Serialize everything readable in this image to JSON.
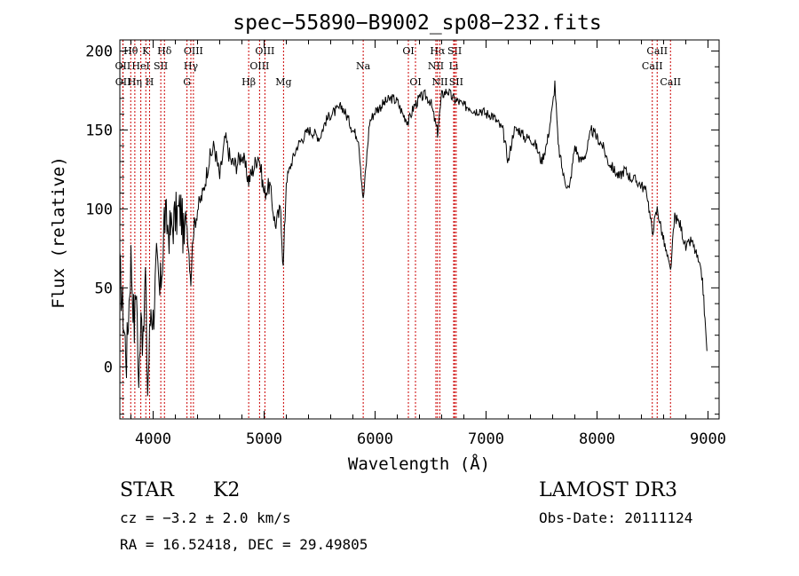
{
  "chart_data": {
    "type": "line",
    "title": "spec−55890−B9002_sp08−232.fits",
    "xlabel": "Wavelength (Å)",
    "ylabel": "Flux (relative)",
    "xlim": [
      3700,
      9100
    ],
    "ylim": [
      -33,
      207
    ],
    "xticks": [
      4000,
      5000,
      6000,
      7000,
      8000,
      9000
    ],
    "yticks": [
      0,
      50,
      100,
      150,
      200
    ],
    "grid": false,
    "series": [
      {
        "name": "flux",
        "x": [
          3700,
          3760,
          3800,
          3830,
          3850,
          3870,
          3890,
          3910,
          3930,
          3950,
          3980,
          4000,
          4030,
          4060,
          4090,
          4100,
          4150,
          4200,
          4250,
          4280,
          4300,
          4340,
          4360,
          4400,
          4450,
          4500,
          4550,
          4600,
          4650,
          4700,
          4750,
          4800,
          4861,
          4900,
          4950,
          5000,
          5050,
          5100,
          5150,
          5172,
          5200,
          5250,
          5300,
          5350,
          5400,
          5450,
          5500,
          5550,
          5600,
          5650,
          5700,
          5750,
          5800,
          5850,
          5893,
          5950,
          6000,
          6050,
          6100,
          6150,
          6200,
          6250,
          6300,
          6350,
          6400,
          6450,
          6500,
          6563,
          6600,
          6650,
          6700,
          6750,
          6800,
          6850,
          6900,
          6950,
          7000,
          7050,
          7100,
          7150,
          7200,
          7250,
          7300,
          7350,
          7400,
          7450,
          7500,
          7550,
          7600,
          7620,
          7650,
          7700,
          7750,
          7800,
          7850,
          7900,
          7950,
          8000,
          8050,
          8100,
          8150,
          8200,
          8250,
          8300,
          8350,
          8400,
          8450,
          8498,
          8542,
          8600,
          8662,
          8700,
          8750,
          8800,
          8850,
          8900,
          8950,
          8990
        ],
        "values": [
          60,
          5,
          70,
          25,
          55,
          -20,
          45,
          10,
          60,
          -15,
          40,
          30,
          65,
          45,
          75,
          95,
          85,
          95,
          100,
          78,
          95,
          55,
          85,
          100,
          110,
          130,
          140,
          120,
          145,
          130,
          128,
          135,
          118,
          125,
          135,
          110,
          115,
          90,
          100,
          62,
          118,
          130,
          140,
          145,
          150,
          148,
          145,
          155,
          160,
          162,
          165,
          158,
          150,
          145,
          105,
          155,
          162,
          165,
          168,
          170,
          168,
          160,
          155,
          165,
          170,
          172,
          168,
          148,
          172,
          175,
          170,
          168,
          165,
          165,
          162,
          163,
          160,
          160,
          155,
          150,
          130,
          150,
          150,
          145,
          145,
          140,
          130,
          142,
          165,
          180,
          140,
          120,
          112,
          140,
          130,
          135,
          150,
          145,
          140,
          130,
          125,
          120,
          125,
          120,
          118,
          115,
          110,
          85,
          100,
          80,
          60,
          95,
          90,
          75,
          80,
          70,
          55,
          10
        ]
      }
    ],
    "line_markers": [
      {
        "label": "Hθ",
        "x": 3798,
        "row": 0
      },
      {
        "label": "OII",
        "x": 3727,
        "row": 1
      },
      {
        "label": "OII",
        "x": 3729,
        "row": 2
      },
      {
        "label": "K",
        "x": 3934,
        "row": 0
      },
      {
        "label": "HeI",
        "x": 3889,
        "row": 1
      },
      {
        "label": "Hη",
        "x": 3835,
        "row": 2
      },
      {
        "label": "H",
        "x": 3968,
        "row": 2
      },
      {
        "label": "Hδ",
        "x": 4102,
        "row": 0
      },
      {
        "label": "SII",
        "x": 4069,
        "row": 1
      },
      {
        "label": "OIII",
        "x": 4363,
        "row": 0
      },
      {
        "label": "Hγ",
        "x": 4340,
        "row": 1
      },
      {
        "label": "G",
        "x": 4305,
        "row": 2
      },
      {
        "label": "OIII",
        "x": 5007,
        "row": 0
      },
      {
        "label": "OIII",
        "x": 4959,
        "row": 1
      },
      {
        "label": "Hβ",
        "x": 4861,
        "row": 2
      },
      {
        "label": "Mg",
        "x": 5175,
        "row": 2
      },
      {
        "label": "Na",
        "x": 5893,
        "row": 1
      },
      {
        "label": "OI",
        "x": 6300,
        "row": 0
      },
      {
        "label": "OI",
        "x": 6364,
        "row": 2
      },
      {
        "label": "Hα",
        "x": 6563,
        "row": 0
      },
      {
        "label": "SII",
        "x": 6717,
        "row": 0
      },
      {
        "label": "NII",
        "x": 6548,
        "row": 1
      },
      {
        "label": "Li",
        "x": 6708,
        "row": 1
      },
      {
        "label": "NII",
        "x": 6584,
        "row": 2
      },
      {
        "label": "SII",
        "x": 6731,
        "row": 2
      },
      {
        "label": "CaII",
        "x": 8542,
        "row": 0
      },
      {
        "label": "CaII",
        "x": 8498,
        "row": 1
      },
      {
        "label": "CaII",
        "x": 8662,
        "row": 2
      }
    ]
  },
  "info": {
    "object_class": "STAR",
    "subclass": "K2",
    "cz": "cz = −3.2 ± 2.0 km/s",
    "coords": "RA =  16.52418, DEC =  29.49805",
    "survey": "LAMOST DR3",
    "obs_date": "Obs-Date: 20111124"
  },
  "colors": {
    "line": "#000000",
    "marker": "#cc0000",
    "background": "#ffffff"
  }
}
